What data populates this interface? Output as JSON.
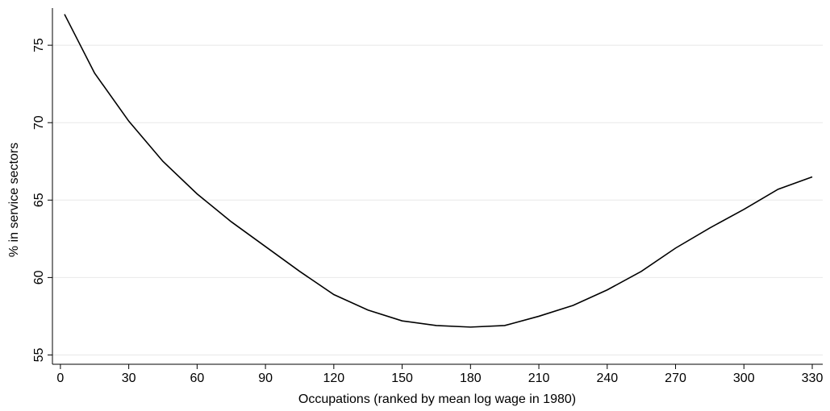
{
  "chart_data": {
    "type": "line",
    "x_label": "Occupations (ranked by mean log wage in 1980)",
    "y_label": "% in service sectors",
    "x": [
      1.8,
      15,
      30,
      45,
      60,
      75,
      90,
      105,
      120,
      135,
      150,
      165,
      180,
      195,
      210,
      225,
      240,
      255,
      270,
      285,
      300,
      315,
      330
    ],
    "series": [
      {
        "name": "service share",
        "color": "#000000",
        "values": [
          77.0,
          73.2,
          70.1,
          67.5,
          65.4,
          63.6,
          62.0,
          60.4,
          58.9,
          57.9,
          57.2,
          56.9,
          56.8,
          56.9,
          57.5,
          58.2,
          59.2,
          60.4,
          61.9,
          63.2,
          64.4,
          65.7,
          66.5
        ]
      }
    ],
    "xlim": [
      -3.5,
      334.6
    ],
    "ylim": [
      54.4,
      77.4
    ],
    "xticks": [
      0,
      30,
      60,
      90,
      120,
      150,
      180,
      210,
      240,
      270,
      300,
      330
    ],
    "yticks": [
      55,
      60,
      65,
      70,
      75
    ],
    "grid": true
  }
}
